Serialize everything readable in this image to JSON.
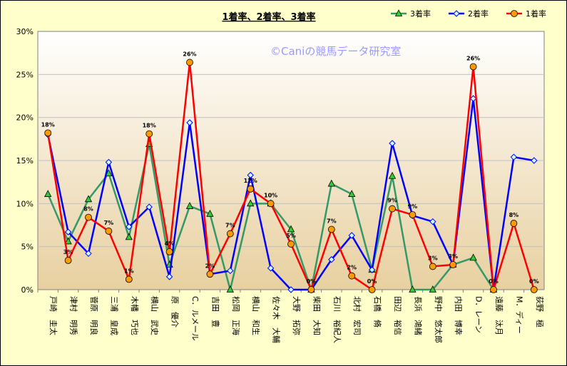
{
  "chart_data": {
    "type": "line",
    "title": "1着率、2着率、3着率",
    "watermark": "©Caniの競馬データ研究室",
    "ylim": [
      0,
      30
    ],
    "yticks": [
      "0%",
      "5%",
      "10%",
      "15%",
      "20%",
      "25%",
      "30%"
    ],
    "legend_position": "top-right",
    "grid": true,
    "categories": [
      "戸崎　圭太",
      "津村　明秀",
      "菅原　明良",
      "三浦　皇成",
      "木幡　巧也",
      "横山　武史",
      "原　優介",
      "C．ルメール",
      "吉田　豊",
      "松岡　正海",
      "横山　和生",
      "佐々木　大輔",
      "大野　拓弥",
      "柴田　大知",
      "石川　裕紀人",
      "北村　宏司",
      "石橋　脩",
      "田辺　裕信",
      "長浜　鴻緒",
      "野中　悠太郎",
      "内田　博幸",
      "D．レーン",
      "遠藤　汰月",
      "M．ディー",
      "荻野　極"
    ],
    "series": [
      {
        "name": "3着率",
        "color": "#339966",
        "marker": "triangle",
        "marker_fill": "#33cc33",
        "values": [
          11.1,
          5.6,
          10.5,
          13.5,
          6.1,
          16.9,
          2.9,
          9.7,
          8.8,
          0,
          10.0,
          10.0,
          7.0,
          0,
          12.3,
          11.1,
          2.3,
          13.2,
          0,
          0,
          2.9,
          3.7,
          0,
          null,
          null
        ]
      },
      {
        "name": "2着率",
        "color": "#0000ff",
        "marker": "diamond",
        "marker_fill": "#ccffff",
        "values": [
          18.0,
          6.7,
          4.2,
          14.8,
          7.3,
          9.6,
          1.5,
          19.4,
          1.8,
          2.2,
          13.3,
          2.5,
          0,
          0,
          3.5,
          6.3,
          2.3,
          17.0,
          8.6,
          7.9,
          2.9,
          22.2,
          0,
          15.4,
          15.0
        ]
      },
      {
        "name": "1着率",
        "color": "#ff0000",
        "marker": "circle",
        "marker_fill": "#ff9900",
        "values": [
          18.2,
          3.4,
          8.4,
          6.8,
          1.2,
          18.1,
          4.4,
          26.4,
          1.8,
          6.5,
          11.7,
          10.0,
          5.3,
          0,
          7.0,
          1.6,
          0,
          9.4,
          8.7,
          2.7,
          2.9,
          25.9,
          0,
          7.7,
          0
        ]
      }
    ],
    "data_labels": [
      {
        "series": 2,
        "index": 0,
        "text": "18%"
      },
      {
        "series": 2,
        "index": 1,
        "text": "3%"
      },
      {
        "series": 2,
        "index": 2,
        "text": "8%"
      },
      {
        "series": 2,
        "index": 3,
        "text": "7%"
      },
      {
        "series": 2,
        "index": 4,
        "text": "1%"
      },
      {
        "series": 2,
        "index": 5,
        "text": "18%"
      },
      {
        "series": 2,
        "index": 6,
        "text": "4%"
      },
      {
        "series": 2,
        "index": 7,
        "text": "26%"
      },
      {
        "series": 2,
        "index": 8,
        "text": "2%"
      },
      {
        "series": 2,
        "index": 9,
        "text": "7%"
      },
      {
        "series": 2,
        "index": 10,
        "text": "12%"
      },
      {
        "series": 2,
        "index": 11,
        "text": "10%"
      },
      {
        "series": 2,
        "index": 12,
        "text": "5%"
      },
      {
        "series": 2,
        "index": 13,
        "text": "0%"
      },
      {
        "series": 2,
        "index": 14,
        "text": "7%"
      },
      {
        "series": 2,
        "index": 15,
        "text": "2%"
      },
      {
        "series": 2,
        "index": 16,
        "text": "0%"
      },
      {
        "series": 2,
        "index": 17,
        "text": "9%"
      },
      {
        "series": 2,
        "index": 18,
        "text": "9%"
      },
      {
        "series": 2,
        "index": 19,
        "text": "3%"
      },
      {
        "series": 2,
        "index": 20,
        "text": "3%"
      },
      {
        "series": 2,
        "index": 21,
        "text": "26%"
      },
      {
        "series": 2,
        "index": 22,
        "text": "0%"
      },
      {
        "series": 2,
        "index": 23,
        "text": "8%"
      },
      {
        "series": 2,
        "index": 24,
        "text": "0%"
      }
    ]
  }
}
